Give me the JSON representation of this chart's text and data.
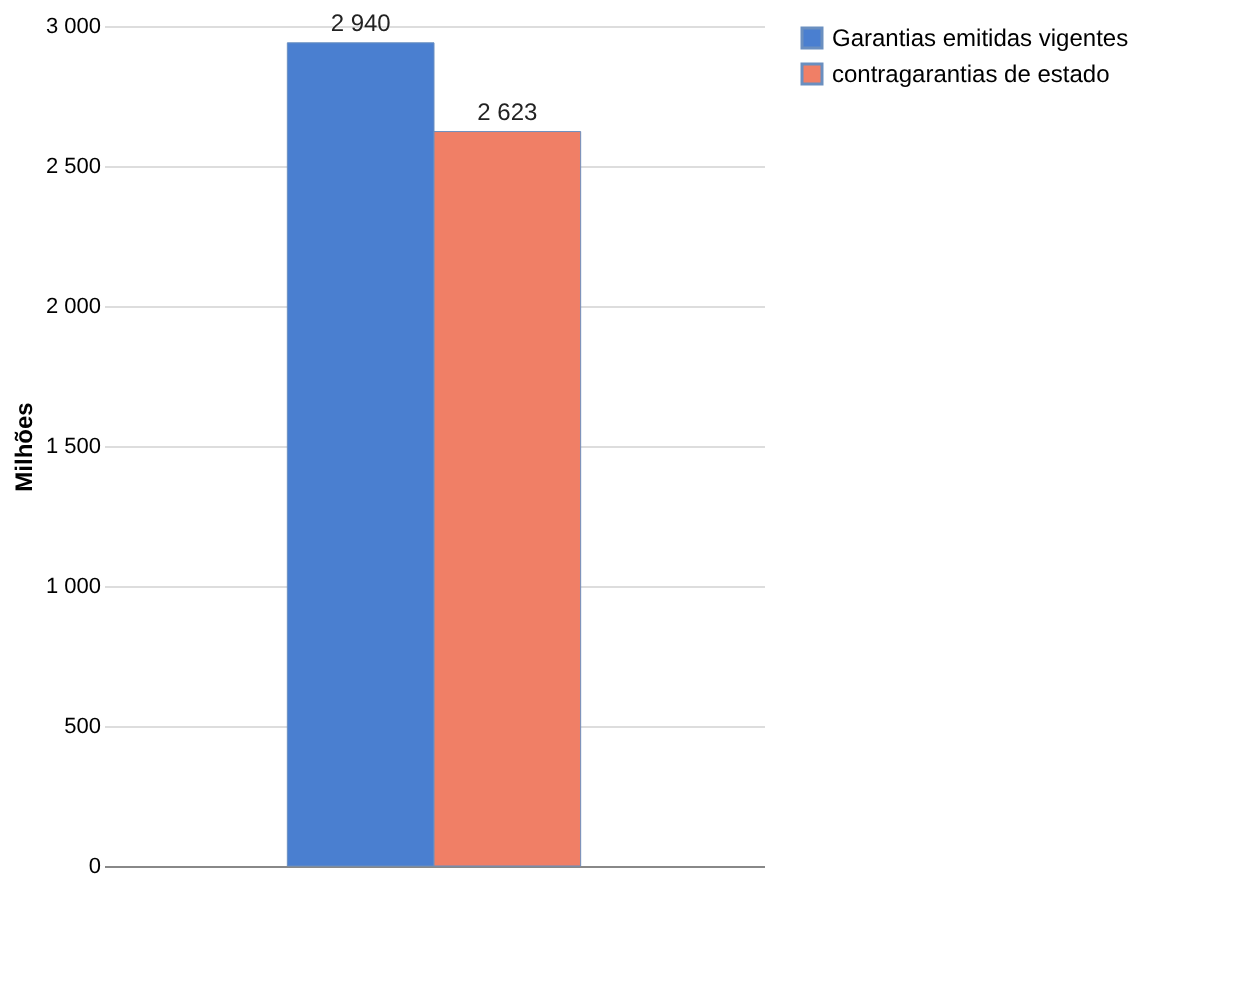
{
  "chart_data": {
    "type": "bar",
    "ylabel": "Milhões",
    "categories": [
      null
    ],
    "series": [
      {
        "name": "Garantias emitidas vigentes",
        "color": "#4a7fd0",
        "values": [
          2940
        ],
        "value_labels": [
          "2 940"
        ]
      },
      {
        "name": "contragarantias de estado",
        "color": "#f07f66",
        "values": [
          2623
        ],
        "value_labels": [
          "2 623"
        ]
      }
    ],
    "ylim": [
      0,
      3000
    ],
    "yticks": [
      0,
      500,
      {
        "value": 1000,
        "label": "1 000"
      },
      {
        "value": 1500,
        "label": "1 500"
      },
      {
        "value": 2000,
        "label": "2 000"
      },
      {
        "value": 2500,
        "label": "2 500"
      },
      {
        "value": 3000,
        "label": "3 000"
      }
    ],
    "grid": "y",
    "legend": "right"
  }
}
